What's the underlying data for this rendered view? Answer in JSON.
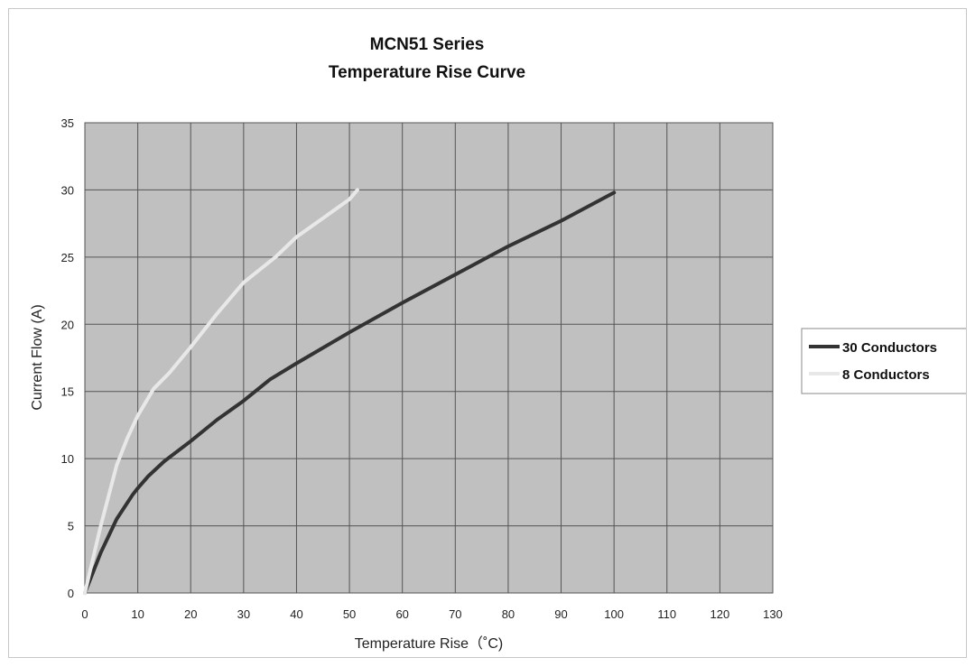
{
  "chart_data": {
    "type": "line",
    "title": "MCN51 Series",
    "subtitle": "Temperature Rise Curve",
    "xlabel": "Temperature Rise（˚C)",
    "ylabel": "Current Flow (A)",
    "xlim": [
      0,
      130
    ],
    "ylim": [
      0,
      35
    ],
    "xticks": [
      0,
      10,
      20,
      30,
      40,
      50,
      60,
      70,
      80,
      90,
      100,
      110,
      120,
      130
    ],
    "yticks": [
      0,
      5,
      10,
      15,
      20,
      25,
      30,
      35
    ],
    "grid": true,
    "legend_position": "right",
    "plot_background": "#c0c0c0",
    "series": [
      {
        "name": "30 Conductors",
        "color": "#333333",
        "x": [
          0,
          3,
          6,
          9,
          10,
          12,
          15,
          20,
          25,
          30,
          35,
          40,
          50,
          60,
          70,
          80,
          90,
          100
        ],
        "y": [
          0,
          3,
          5.5,
          7.3,
          7.8,
          8.7,
          9.8,
          11.3,
          12.9,
          14.3,
          15.9,
          17.1,
          19.4,
          21.6,
          23.7,
          25.8,
          27.7,
          29.8
        ]
      },
      {
        "name": "8 Conductors",
        "color": "#e8e8e8",
        "x": [
          0,
          3,
          6,
          8,
          10,
          13,
          16,
          20,
          25,
          30,
          36,
          40,
          45,
          50,
          51.5
        ],
        "y": [
          0,
          5,
          9.5,
          11.5,
          13.2,
          15.2,
          16.4,
          18.3,
          20.8,
          23.1,
          25,
          26.5,
          27.9,
          29.3,
          30
        ]
      }
    ]
  }
}
